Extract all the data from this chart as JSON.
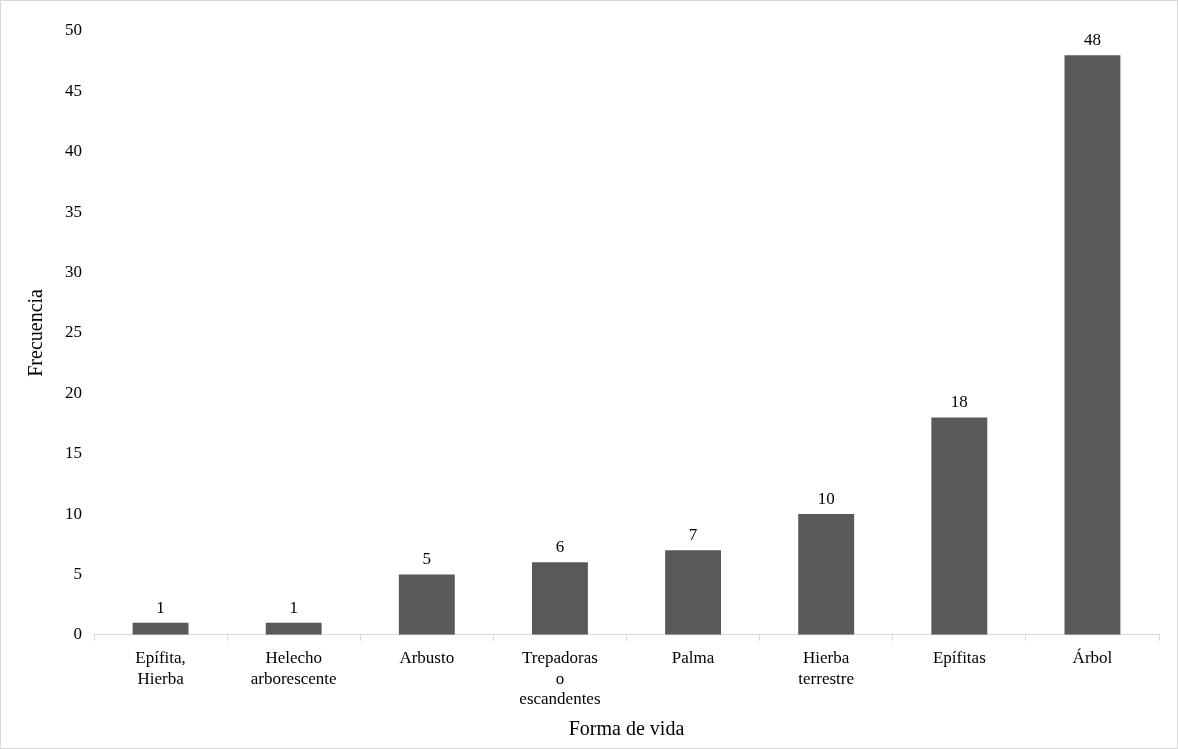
{
  "chart_data": {
    "type": "bar",
    "xlabel": "Forma de vida",
    "ylabel": "Frecuencia",
    "categories": [
      "Epífita, Hierba",
      "Helecho arborescente",
      "Arbusto",
      "Trepadoras o escandentes",
      "Palma",
      "Hierba terrestre",
      "Epífitas",
      "Árbol"
    ],
    "values": [
      1,
      1,
      5,
      6,
      7,
      10,
      18,
      48
    ],
    "color": "#595959",
    "ylim": [
      0,
      50
    ],
    "yticks": [
      0,
      5,
      10,
      15,
      20,
      25,
      30,
      35,
      40,
      45,
      50
    ],
    "grid": false,
    "legend": false,
    "data_labels": true
  }
}
